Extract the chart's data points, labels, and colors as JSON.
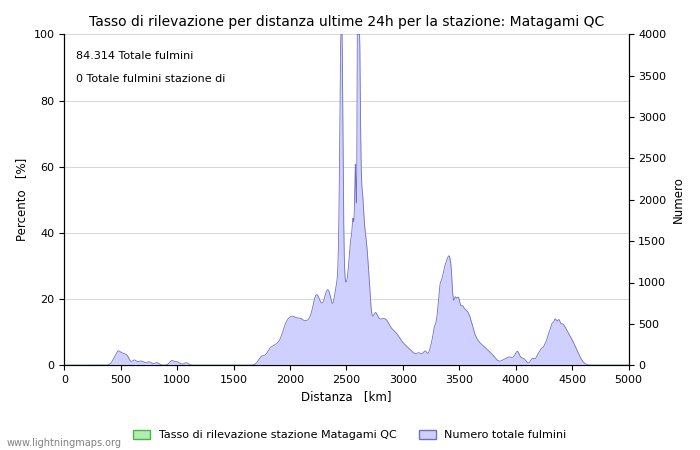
{
  "title": "Tasso di rilevazione per distanza ultime 24h per la stazione: Matagami QC",
  "xlabel": "Distanza   [km]",
  "ylabel_left": "Percento   [%]",
  "ylabel_right": "Numero",
  "annotation_line1": "84.314 Totale fulmini",
  "annotation_line2": "0 Totale fulmini stazione di",
  "xlim": [
    0,
    5000
  ],
  "ylim_left": [
    0,
    100
  ],
  "ylim_right": [
    0,
    4000
  ],
  "xticks": [
    0,
    500,
    1000,
    1500,
    2000,
    2500,
    3000,
    3500,
    4000,
    4500,
    5000
  ],
  "yticks_left": [
    0,
    20,
    40,
    60,
    80,
    100
  ],
  "yticks_right": [
    0,
    500,
    1000,
    1500,
    2000,
    2500,
    3000,
    3500,
    4000
  ],
  "legend_label_green": "Tasso di rilevazione stazione Matagami QC",
  "legend_label_blue": "Numero totale fulmini",
  "fill_color_blue": "#d0d0ff",
  "fill_color_green": "#b0eeb0",
  "line_color_blue": "#7070c0",
  "line_color_green": "#50b050",
  "background_color": "#ffffff",
  "grid_color": "#c8c8c8",
  "watermark": "www.lightningmaps.org",
  "title_fontsize": 10,
  "axis_fontsize": 8.5,
  "tick_fontsize": 8
}
